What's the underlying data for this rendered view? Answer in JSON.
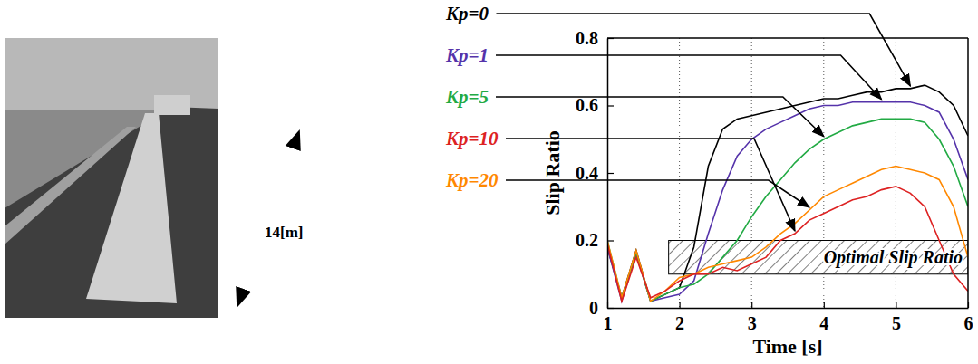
{
  "chart_data": {
    "type": "line",
    "x_label": "Time [s]",
    "y_label": "Slip Ratio",
    "xlim": [
      1,
      6
    ],
    "xticks": [
      1,
      2,
      3,
      4,
      5,
      6
    ],
    "ylim": [
      0,
      0.8
    ],
    "yticks": [
      0,
      0.2,
      0.4,
      0.6,
      0.8
    ],
    "grid": "x",
    "x": [
      1,
      1.2,
      1.4,
      1.6,
      1.8,
      2,
      2.2,
      2.4,
      2.6,
      2.8,
      3,
      3.2,
      3.4,
      3.6,
      3.8,
      4,
      4.2,
      4.4,
      4.6,
      4.8,
      5,
      5.2,
      5.4,
      5.6,
      5.8,
      6
    ],
    "series": [
      {
        "name": "Kp=0",
        "color": "#000000",
        "values": [
          0.18,
          0.03,
          0.17,
          0.02,
          0.04,
          0.06,
          0.18,
          0.42,
          0.53,
          0.56,
          0.57,
          0.58,
          0.59,
          0.6,
          0.61,
          0.62,
          0.62,
          0.63,
          0.64,
          0.64,
          0.65,
          0.65,
          0.66,
          0.64,
          0.6,
          0.51
        ]
      },
      {
        "name": "Kp=1",
        "color": "#5533aa",
        "values": [
          0.18,
          0.02,
          0.16,
          0.02,
          0.03,
          0.04,
          0.08,
          0.22,
          0.35,
          0.45,
          0.5,
          0.53,
          0.55,
          0.57,
          0.59,
          0.6,
          0.6,
          0.61,
          0.61,
          0.61,
          0.61,
          0.61,
          0.6,
          0.58,
          0.5,
          0.38
        ]
      },
      {
        "name": "Kp=5",
        "color": "#22aa44",
        "values": [
          0.2,
          0.03,
          0.16,
          0.02,
          0.04,
          0.06,
          0.07,
          0.1,
          0.15,
          0.2,
          0.27,
          0.33,
          0.38,
          0.43,
          0.47,
          0.5,
          0.52,
          0.54,
          0.55,
          0.56,
          0.56,
          0.56,
          0.55,
          0.5,
          0.42,
          0.3
        ]
      },
      {
        "name": "Kp=10",
        "color": "#dd2222",
        "values": [
          0.19,
          0.02,
          0.15,
          0.03,
          0.05,
          0.08,
          0.1,
          0.1,
          0.12,
          0.11,
          0.13,
          0.15,
          0.2,
          0.22,
          0.26,
          0.28,
          0.3,
          0.32,
          0.33,
          0.35,
          0.36,
          0.34,
          0.3,
          0.2,
          0.1,
          0.05
        ]
      },
      {
        "name": "Kp=20",
        "color": "#ff8800",
        "values": [
          0.2,
          0.03,
          0.17,
          0.02,
          0.05,
          0.09,
          0.1,
          0.12,
          0.13,
          0.14,
          0.15,
          0.18,
          0.22,
          0.25,
          0.29,
          0.33,
          0.35,
          0.37,
          0.39,
          0.41,
          0.42,
          0.41,
          0.4,
          0.38,
          0.3,
          0.15
        ]
      }
    ],
    "bands": [
      {
        "label": "Optimal Slip Ratio",
        "x": [
          1.85,
          6
        ],
        "y": [
          0.1,
          0.2
        ]
      }
    ]
  },
  "photo": {
    "annotation": "14[m]"
  }
}
